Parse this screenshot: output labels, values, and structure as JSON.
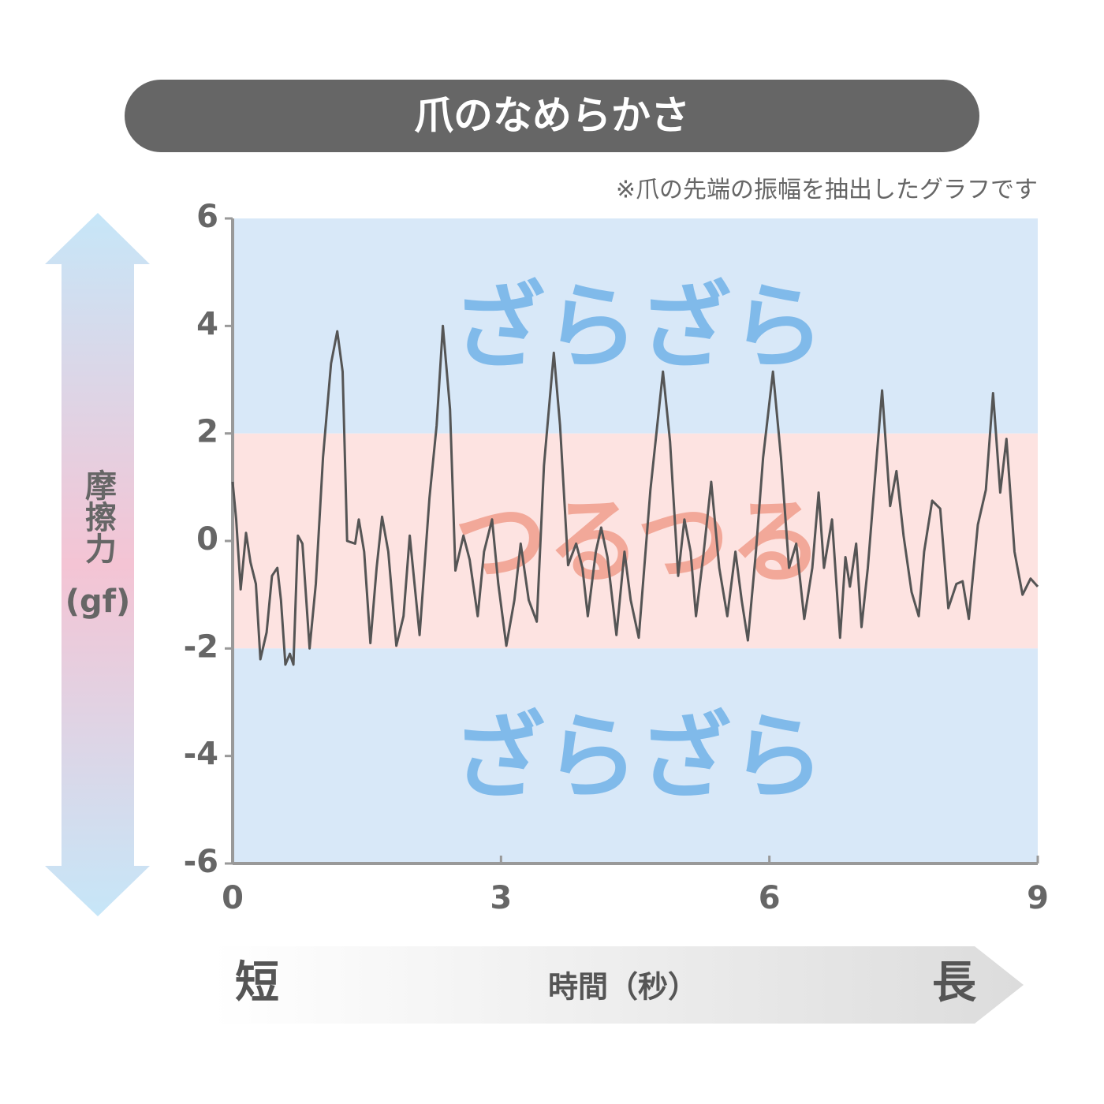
{
  "chart_data": {
    "type": "line",
    "title": "爪のなめらかさ",
    "note": "※爪の先端の振幅を抽出したグラフです",
    "y_label": "摩擦力",
    "y_unit": "(gf)",
    "x_label": "時間（秒）",
    "x_short": "短",
    "x_long": "長",
    "xlim": [
      0,
      9
    ],
    "xticks": [
      0,
      3,
      6,
      9
    ],
    "ylim": [
      -6,
      6
    ],
    "yticks": [
      -6,
      -4,
      -2,
      0,
      2,
      4,
      6
    ],
    "bands": [
      {
        "from": 2,
        "to": 6,
        "label": "ざらざら",
        "color": "#d8e8f8",
        "label_color": "#80baea"
      },
      {
        "from": -2,
        "to": 2,
        "label": "つるつる",
        "color": "#fde3e1",
        "label_color": "#f2a899"
      },
      {
        "from": -6,
        "to": -2,
        "label": "ざらざら",
        "color": "#d8e8f8",
        "label_color": "#80baea"
      }
    ],
    "x": [
      0,
      0.04,
      0.09,
      0.15,
      0.2,
      0.26,
      0.31,
      0.38,
      0.44,
      0.5,
      0.54,
      0.59,
      0.64,
      0.68,
      0.73,
      0.78,
      0.86,
      0.93,
      1.01,
      1.1,
      1.17,
      1.23,
      1.28,
      1.37,
      1.41,
      1.47,
      1.54,
      1.61,
      1.67,
      1.74,
      1.83,
      1.91,
      1.98,
      2.09,
      2.2,
      2.28,
      2.35,
      2.43,
      2.49,
      2.58,
      2.65,
      2.74,
      2.81,
      2.9,
      2.97,
      3.06,
      3.15,
      3.22,
      3.31,
      3.4,
      3.48,
      3.59,
      3.66,
      3.75,
      3.84,
      3.91,
      3.97,
      4.06,
      4.12,
      4.19,
      4.29,
      4.38,
      4.45,
      4.54,
      4.67,
      4.81,
      4.89,
      4.98,
      5.05,
      5.12,
      5.18,
      5.26,
      5.35,
      5.44,
      5.53,
      5.62,
      5.69,
      5.76,
      5.85,
      5.93,
      6.04,
      6.13,
      6.22,
      6.3,
      6.39,
      6.48,
      6.55,
      6.61,
      6.7,
      6.79,
      6.85,
      6.9,
      6.97,
      7.03,
      7.1,
      7.17,
      7.26,
      7.35,
      7.42,
      7.5,
      7.59,
      7.67,
      7.73,
      7.82,
      7.91,
      8.0,
      8.09,
      8.16,
      8.23,
      8.33,
      8.42,
      8.5,
      8.58,
      8.65,
      8.74,
      8.83,
      8.92,
      9.0
    ],
    "series": [
      {
        "color": "#555555",
        "values": [
          1.1,
          0.4,
          -0.9,
          0.15,
          -0.4,
          -0.8,
          -2.2,
          -1.7,
          -0.65,
          -0.5,
          -1.1,
          -2.3,
          -2.1,
          -2.3,
          0.1,
          -0.05,
          -2.0,
          -0.8,
          1.55,
          3.3,
          3.9,
          3.15,
          0.0,
          -0.05,
          0.4,
          -0.2,
          -1.9,
          -0.5,
          0.45,
          -0.2,
          -1.95,
          -1.4,
          0.1,
          -1.75,
          0.8,
          2.15,
          4.0,
          2.45,
          -0.55,
          0.1,
          -0.35,
          -1.4,
          -0.2,
          0.4,
          -0.8,
          -1.95,
          -1.1,
          -0.05,
          -1.1,
          -1.5,
          1.4,
          3.5,
          2.15,
          -0.45,
          -0.05,
          -0.5,
          -1.4,
          -0.2,
          0.25,
          -0.3,
          -1.75,
          -0.2,
          -1.1,
          -1.8,
          0.95,
          3.15,
          1.85,
          -0.65,
          0.4,
          -0.2,
          -1.4,
          -0.3,
          1.1,
          -0.5,
          -1.4,
          -0.2,
          -1.1,
          -1.85,
          -0.2,
          1.55,
          3.15,
          1.55,
          -0.5,
          -0.05,
          -1.45,
          -0.5,
          0.9,
          -0.5,
          0.4,
          -1.8,
          -0.3,
          -0.85,
          -0.05,
          -1.6,
          -0.5,
          0.95,
          2.8,
          0.65,
          1.3,
          0.1,
          -0.95,
          -1.4,
          -0.2,
          0.75,
          0.6,
          -1.25,
          -0.8,
          -0.75,
          -1.45,
          0.3,
          0.95,
          2.75,
          0.9,
          1.9,
          -0.2,
          -1.0,
          -0.7,
          -0.85
        ]
      }
    ]
  }
}
